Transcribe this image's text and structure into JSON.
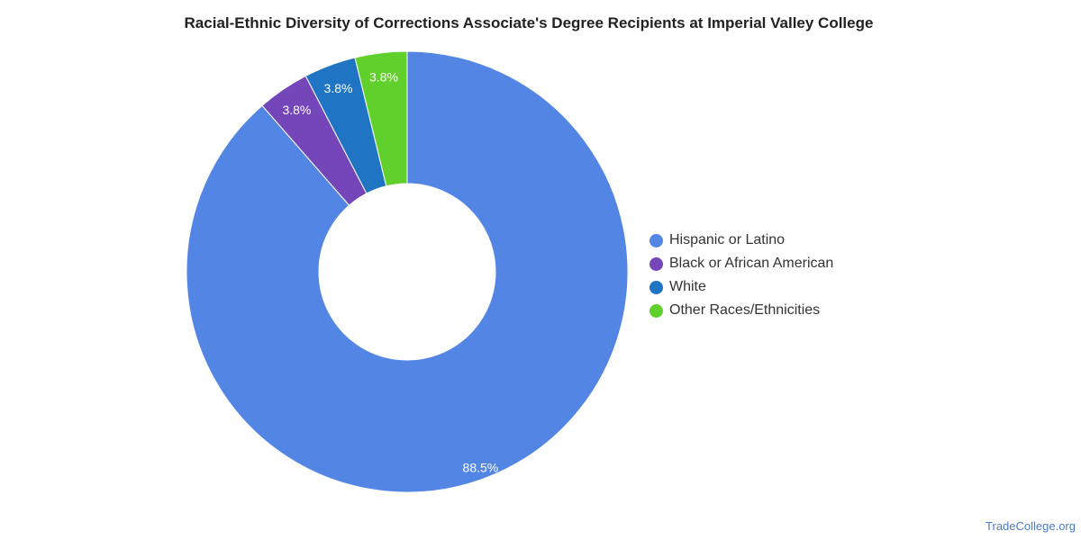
{
  "chart_data": {
    "type": "pie",
    "title": "Racial-Ethnic Diversity of Corrections Associate's Degree Recipients at Imperial Valley College",
    "legend_position": "right",
    "slices": [
      {
        "label": "Hispanic or Latino",
        "value": 88.5,
        "display": "88.5%",
        "color": "#5386e4"
      },
      {
        "label": "Black or African American",
        "value": 3.8,
        "display": "3.8%",
        "color": "#7446b9"
      },
      {
        "label": "White",
        "value": 3.8,
        "display": "3.8%",
        "color": "#1f74c4"
      },
      {
        "label": "Other Races/Ethnicities",
        "value": 3.8,
        "display": "3.8%",
        "color": "#62d02c"
      }
    ]
  },
  "watermark": "TradeCollege.org"
}
